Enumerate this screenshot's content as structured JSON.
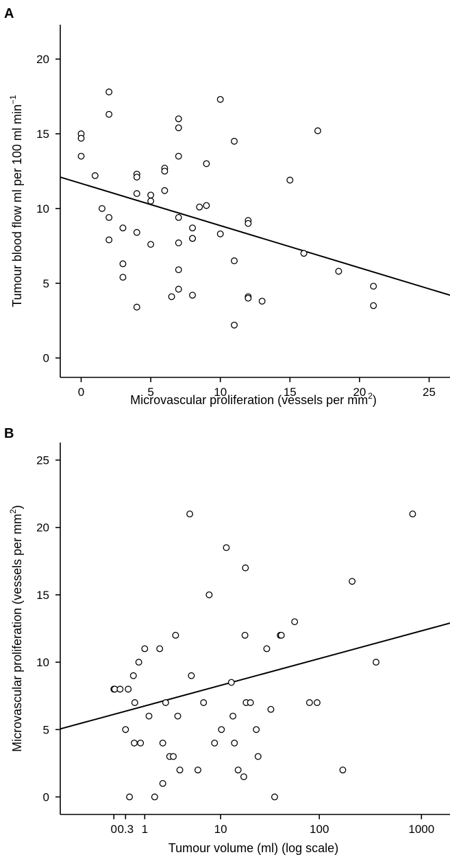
{
  "chart_data": [
    {
      "type": "scatter",
      "panel_label": "A",
      "xlabel": "Microvascular proliferation (vessels per mm",
      "xlabel_sup": "2",
      "xlabel_end": ")",
      "ylabel": "Tumour blood flow ml per 100 ml min",
      "ylabel_sup": "−1",
      "xlim": [
        -1.5,
        26.5
      ],
      "ylim": [
        -1.3,
        22.3
      ],
      "x_ticks": [
        0,
        5,
        10,
        15,
        20,
        25
      ],
      "y_ticks": [
        0,
        5,
        10,
        15,
        20
      ],
      "x_tick_labels": [
        "0",
        "5",
        "10",
        "15",
        "20",
        "25"
      ],
      "y_tick_labels": [
        "0",
        "5",
        "10",
        "15",
        "20"
      ],
      "x_scale": "linear",
      "grid": false,
      "series": [
        {
          "points": [
            [
              0,
              15.0
            ],
            [
              0,
              14.7
            ],
            [
              0,
              13.5
            ],
            [
              1,
              12.2
            ],
            [
              1.5,
              10.0
            ],
            [
              2,
              17.8
            ],
            [
              2,
              16.3
            ],
            [
              2,
              9.4
            ],
            [
              2,
              7.9
            ],
            [
              3,
              8.7
            ],
            [
              3,
              6.3
            ],
            [
              3,
              5.4
            ],
            [
              4,
              12.3
            ],
            [
              4,
              12.1
            ],
            [
              4,
              11.0
            ],
            [
              4,
              8.4
            ],
            [
              4,
              3.4
            ],
            [
              5,
              10.9
            ],
            [
              5,
              10.5
            ],
            [
              5,
              7.6
            ],
            [
              6,
              12.7
            ],
            [
              6,
              12.5
            ],
            [
              6,
              11.2
            ],
            [
              6.5,
              4.1
            ],
            [
              7,
              16.0
            ],
            [
              7,
              15.4
            ],
            [
              7,
              13.5
            ],
            [
              7,
              9.4
            ],
            [
              7,
              7.7
            ],
            [
              7,
              5.9
            ],
            [
              7,
              4.6
            ],
            [
              8,
              8.7
            ],
            [
              8,
              8.0
            ],
            [
              8,
              8.0
            ],
            [
              8,
              4.2
            ],
            [
              8.5,
              10.1
            ],
            [
              9,
              13.0
            ],
            [
              9,
              10.2
            ],
            [
              10,
              17.3
            ],
            [
              10,
              8.3
            ],
            [
              11,
              14.5
            ],
            [
              11,
              6.5
            ],
            [
              11,
              2.2
            ],
            [
              12,
              9.2
            ],
            [
              12,
              9.0
            ],
            [
              12,
              4.1
            ],
            [
              12,
              4.0
            ],
            [
              13,
              3.8
            ],
            [
              15,
              11.9
            ],
            [
              16,
              7.0
            ],
            [
              17,
              15.2
            ],
            [
              18.5,
              5.8
            ],
            [
              21,
              4.8
            ],
            [
              21,
              3.5
            ]
          ]
        }
      ],
      "trendline": {
        "x": [
          -1.5,
          26.5
        ],
        "y": [
          12.1,
          4.2
        ]
      }
    },
    {
      "type": "scatter",
      "panel_label": "B",
      "xlabel": "Tumour volume (ml) (log scale)",
      "ylabel": "Microvascular proliferation (vessels per mm",
      "ylabel_sup": "2",
      "ylabel_end": ")",
      "x_scale": "log",
      "x_offset": 1,
      "xlim": [
        -0.7,
        1900
      ],
      "ylim": [
        -1.3,
        26.3
      ],
      "x_ticks": [
        0,
        1,
        10,
        100,
        1000
      ],
      "x_tick_labels": [
        "0",
        "1",
        "10",
        "100",
        "1000"
      ],
      "x_minor_ticks": [
        0.3
      ],
      "x_minor_tick_labels": [
        "0.3"
      ],
      "y_ticks": [
        0,
        5,
        10,
        15,
        20,
        25
      ],
      "y_tick_labels": [
        "0",
        "5",
        "10",
        "15",
        "20",
        "25"
      ],
      "grid": false,
      "series": [
        {
          "points": [
            [
              0,
              8
            ],
            [
              0.02,
              8
            ],
            [
              0.15,
              8
            ],
            [
              0.3,
              5
            ],
            [
              0.38,
              8
            ],
            [
              0.42,
              0
            ],
            [
              0.55,
              9
            ],
            [
              0.58,
              4
            ],
            [
              0.6,
              7
            ],
            [
              0.75,
              10
            ],
            [
              0.82,
              4
            ],
            [
              1.0,
              11
            ],
            [
              1.2,
              6
            ],
            [
              1.5,
              0
            ],
            [
              1.8,
              11
            ],
            [
              2.0,
              4
            ],
            [
              2.0,
              1
            ],
            [
              2.2,
              7
            ],
            [
              2.5,
              3
            ],
            [
              2.8,
              3
            ],
            [
              3.0,
              12
            ],
            [
              3.2,
              6
            ],
            [
              3.4,
              2
            ],
            [
              4.5,
              21
            ],
            [
              4.7,
              9
            ],
            [
              5.6,
              2
            ],
            [
              6.5,
              7
            ],
            [
              7.5,
              15
            ],
            [
              8.6,
              4
            ],
            [
              10.2,
              5
            ],
            [
              11.5,
              18.5
            ],
            [
              13.0,
              8.5
            ],
            [
              13.5,
              6
            ],
            [
              14.0,
              4
            ],
            [
              15.3,
              2
            ],
            [
              17.5,
              1.5
            ],
            [
              18.0,
              12
            ],
            [
              18.2,
              17
            ],
            [
              18.5,
              7
            ],
            [
              20.5,
              7
            ],
            [
              23.5,
              5
            ],
            [
              24.5,
              3
            ],
            [
              30.0,
              11
            ],
            [
              33.0,
              6.5
            ],
            [
              36.0,
              0
            ],
            [
              41.0,
              12
            ],
            [
              42.0,
              12
            ],
            [
              57.0,
              13
            ],
            [
              80.0,
              7
            ],
            [
              95.0,
              7
            ],
            [
              170.0,
              2
            ],
            [
              210.0,
              16
            ],
            [
              360.0,
              10
            ],
            [
              820.0,
              21
            ]
          ]
        }
      ],
      "trendline": {
        "x": [
          -0.7,
          1900
        ],
        "y": [
          5.05,
          12.9
        ]
      }
    }
  ]
}
